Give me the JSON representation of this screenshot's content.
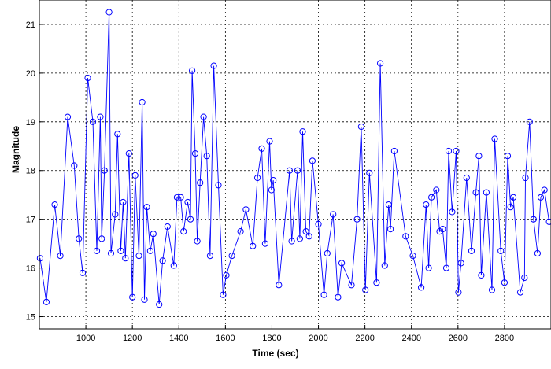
{
  "chart_data": {
    "type": "line",
    "title": "",
    "xlabel": "Time (sec)",
    "ylabel": "Magnitude",
    "xlim": [
      800,
      3000
    ],
    "ylim": [
      14.75,
      21.5
    ],
    "grid": true,
    "marker": "circle",
    "series_color": "#0000ff",
    "xticks": [
      1000,
      1200,
      1400,
      1600,
      1800,
      2000,
      2200,
      2400,
      2600,
      2800
    ],
    "yticks": [
      15,
      16,
      17,
      18,
      19,
      20,
      21
    ],
    "xtick_labels": [
      "1000",
      "1200",
      "1400",
      "1600",
      "1800",
      "2000",
      "2200",
      "2400",
      "2600",
      "2800"
    ],
    "ytick_labels": [
      "15",
      "16",
      "17",
      "18",
      "19",
      "20",
      "21"
    ],
    "series": [
      {
        "x": [
          803,
          830,
          866,
          890,
          922,
          950,
          970,
          986,
          1008,
          1030,
          1047,
          1062,
          1068,
          1080,
          1100,
          1108,
          1126,
          1136,
          1150,
          1160,
          1170,
          1185,
          1200,
          1212,
          1228,
          1242,
          1252,
          1262,
          1277,
          1290,
          1315,
          1330,
          1351,
          1378,
          1392,
          1408,
          1420,
          1438,
          1450,
          1457,
          1470,
          1479,
          1491,
          1506,
          1520,
          1534,
          1550,
          1570,
          1590,
          1604,
          1628,
          1665,
          1688,
          1718,
          1738,
          1756,
          1771,
          1790,
          1798,
          1806,
          1830,
          1876,
          1885,
          1910,
          1920,
          1932,
          1946,
          1960,
          1974,
          2000,
          2024,
          2038,
          2063,
          2084,
          2100,
          2142,
          2166,
          2184,
          2202,
          2219,
          2250,
          2266,
          2285,
          2302,
          2310,
          2326,
          2375,
          2406,
          2442,
          2463,
          2474,
          2486,
          2507,
          2521,
          2534,
          2550,
          2560,
          2575,
          2592,
          2602,
          2613,
          2637,
          2658,
          2677,
          2690,
          2700,
          2722,
          2746,
          2758,
          2784,
          2800,
          2814,
          2826,
          2838,
          2868,
          2886,
          2890,
          2908,
          2925,
          2942,
          2956,
          2972,
          2992
        ],
        "y": [
          16.2,
          15.3,
          17.3,
          16.25,
          19.1,
          18.1,
          16.6,
          15.9,
          19.9,
          19.0,
          16.35,
          19.1,
          16.6,
          18.0,
          21.25,
          16.3,
          17.1,
          18.75,
          16.35,
          17.35,
          16.2,
          18.35,
          15.4,
          17.9,
          16.25,
          19.4,
          15.35,
          17.25,
          16.35,
          16.7,
          15.25,
          16.15,
          16.85,
          16.05,
          17.45,
          17.45,
          16.75,
          17.35,
          17.0,
          20.05,
          18.35,
          16.55,
          17.75,
          19.1,
          18.3,
          16.25,
          20.15,
          17.7,
          15.45,
          15.85,
          16.25,
          16.75,
          17.2,
          16.45,
          17.85,
          18.45,
          16.5,
          18.6,
          17.6,
          17.8,
          15.65,
          18.0,
          16.55,
          18.0,
          16.6,
          18.8,
          16.75,
          16.65,
          18.2,
          16.9,
          15.45,
          16.3,
          17.1,
          15.4,
          16.1,
          15.65,
          17.0,
          18.9,
          15.55,
          17.95,
          15.7,
          20.2,
          16.05,
          17.3,
          16.8,
          18.4,
          16.65,
          16.25,
          15.6,
          17.3,
          16.0,
          17.45,
          17.6,
          16.75,
          16.8,
          16.0,
          18.4,
          17.15,
          18.4,
          15.5,
          16.1,
          17.85,
          16.35,
          17.55,
          18.3,
          15.85,
          17.55,
          15.55,
          18.65,
          16.35,
          15.7,
          18.3,
          17.25,
          17.45,
          15.5,
          15.8,
          17.85,
          19.0,
          17.0,
          16.3,
          17.45,
          17.6,
          16.95
        ]
      }
    ]
  }
}
